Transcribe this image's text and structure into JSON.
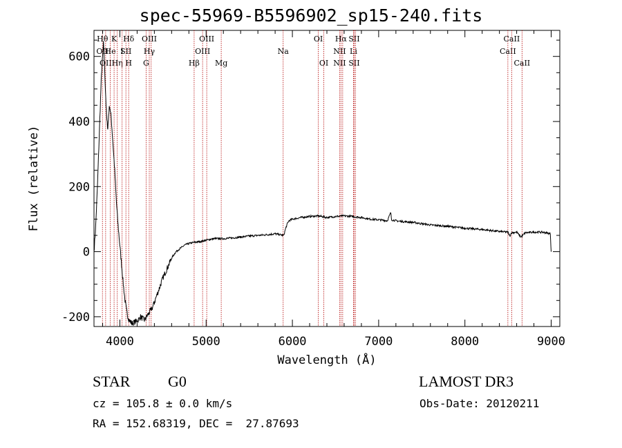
{
  "chart_data": {
    "type": "line",
    "title": "spec-55969-B5596902_sp15-240.fits",
    "xlabel": "Wavelength (Å)",
    "ylabel": "Flux (relative)",
    "xlim": [
      3700,
      9100
    ],
    "ylim": [
      -230,
      680
    ],
    "xticks": [
      4000,
      5000,
      6000,
      7000,
      8000,
      9000
    ],
    "yticks": [
      -200,
      0,
      200,
      400,
      600
    ],
    "series": [
      {
        "x": [
          3700,
          3720,
          3740,
          3760,
          3780,
          3790,
          3800,
          3810,
          3820,
          3830,
          3840,
          3850,
          3860,
          3870,
          3880,
          3900,
          3920,
          3940,
          3960,
          3980,
          4000,
          4020,
          4040,
          4060,
          4080,
          4100,
          4120,
          4140,
          4160,
          4180,
          4200,
          4220,
          4240,
          4260,
          4280,
          4300,
          4320,
          4340,
          4360,
          4380,
          4400,
          4420,
          4440,
          4460,
          4480,
          4500,
          4550,
          4600,
          4650,
          4700,
          4750,
          4800,
          4850,
          4900,
          4950,
          5000,
          5050,
          5100,
          5150,
          5200,
          5300,
          5400,
          5500,
          5600,
          5700,
          5800,
          5900,
          5920,
          5940,
          5960,
          6000,
          6100,
          6200,
          6300,
          6400,
          6500,
          6600,
          6700,
          6800,
          6900,
          7000,
          7100,
          7140,
          7150,
          7200,
          7300,
          7400,
          7500,
          7600,
          7700,
          7800,
          7900,
          8000,
          8100,
          8200,
          8300,
          8400,
          8500,
          8520,
          8540,
          8600,
          8650,
          8700,
          8800,
          8900,
          8990,
          9000
        ],
        "y": [
          0,
          80,
          200,
          350,
          500,
          560,
          600,
          640,
          580,
          520,
          450,
          400,
          380,
          420,
          450,
          410,
          330,
          250,
          150,
          80,
          20,
          -40,
          -100,
          -150,
          -185,
          -205,
          -215,
          -220,
          -218,
          -215,
          -212,
          -208,
          -200,
          -205,
          -210,
          -205,
          -195,
          -188,
          -180,
          -170,
          -155,
          -140,
          -125,
          -110,
          -95,
          -80,
          -50,
          -20,
          0,
          10,
          20,
          25,
          28,
          30,
          32,
          35,
          38,
          40,
          40,
          40,
          42,
          45,
          48,
          50,
          52,
          55,
          50,
          70,
          85,
          95,
          100,
          105,
          108,
          110,
          105,
          108,
          110,
          108,
          105,
          100,
          98,
          95,
          120,
          98,
          95,
          92,
          90,
          86,
          82,
          80,
          78,
          75,
          72,
          70,
          68,
          65,
          62,
          60,
          48,
          58,
          60,
          45,
          58,
          60,
          60,
          55,
          0
        ]
      }
    ],
    "lines": [
      {
        "wl": 3798,
        "labels": [
          "Hθ",
          "OII",
          ""
        ]
      },
      {
        "wl": 3835,
        "labels": [
          "",
          "",
          "OII"
        ]
      },
      {
        "wl": 3889,
        "labels": [
          "",
          "He",
          ""
        ]
      },
      {
        "wl": 3933,
        "labels": [
          "K",
          "",
          ""
        ]
      },
      {
        "wl": 3970,
        "labels": [
          "",
          "",
          "Hη"
        ]
      },
      {
        "wl": 4026,
        "labels": [
          "",
          "I",
          ""
        ]
      },
      {
        "wl": 4070,
        "labels": [
          "",
          "SII",
          ""
        ]
      },
      {
        "wl": 4102,
        "labels": [
          "Hδ",
          "",
          "H"
        ]
      },
      {
        "wl": 4304,
        "labels": [
          "",
          "",
          "G"
        ]
      },
      {
        "wl": 4341,
        "labels": [
          "OIII",
          "Hγ",
          ""
        ]
      },
      {
        "wl": 4363,
        "labels": [
          "",
          "",
          ""
        ]
      },
      {
        "wl": 4861,
        "labels": [
          "",
          "",
          "Hβ"
        ]
      },
      {
        "wl": 4959,
        "labels": [
          "",
          "OIII",
          ""
        ]
      },
      {
        "wl": 5007,
        "labels": [
          "OIII",
          "",
          ""
        ]
      },
      {
        "wl": 5175,
        "labels": [
          "",
          "",
          "Mg"
        ]
      },
      {
        "wl": 5893,
        "labels": [
          "",
          "Na",
          ""
        ]
      },
      {
        "wl": 6300,
        "labels": [
          "OI",
          "",
          ""
        ]
      },
      {
        "wl": 6364,
        "labels": [
          "",
          "",
          "OI"
        ]
      },
      {
        "wl": 6548,
        "labels": [
          "",
          "NII",
          "NII"
        ]
      },
      {
        "wl": 6563,
        "labels": [
          "Hα",
          "",
          ""
        ]
      },
      {
        "wl": 6583,
        "labels": [
          "",
          "",
          ""
        ]
      },
      {
        "wl": 6708,
        "labels": [
          "",
          "Li",
          ""
        ]
      },
      {
        "wl": 6716,
        "labels": [
          "SII",
          "",
          "SII"
        ]
      },
      {
        "wl": 6731,
        "labels": [
          "",
          "",
          ""
        ]
      },
      {
        "wl": 8498,
        "labels": [
          "",
          "CaII",
          ""
        ]
      },
      {
        "wl": 8542,
        "labels": [
          "CaII",
          "",
          ""
        ]
      },
      {
        "wl": 8662,
        "labels": [
          "",
          "",
          "CaII"
        ]
      }
    ],
    "colors": {
      "spectrum": "#000000",
      "lines": "#b30000",
      "axes": "#000000"
    }
  },
  "info": {
    "class": "STAR",
    "subclass": "G0",
    "survey": "LAMOST DR3",
    "cz": "cz = 105.8 ± 0.0 km/s",
    "obs_date": "Obs-Date: 20120211",
    "radec": "RA = 152.68319, DEC =  27.87693"
  }
}
